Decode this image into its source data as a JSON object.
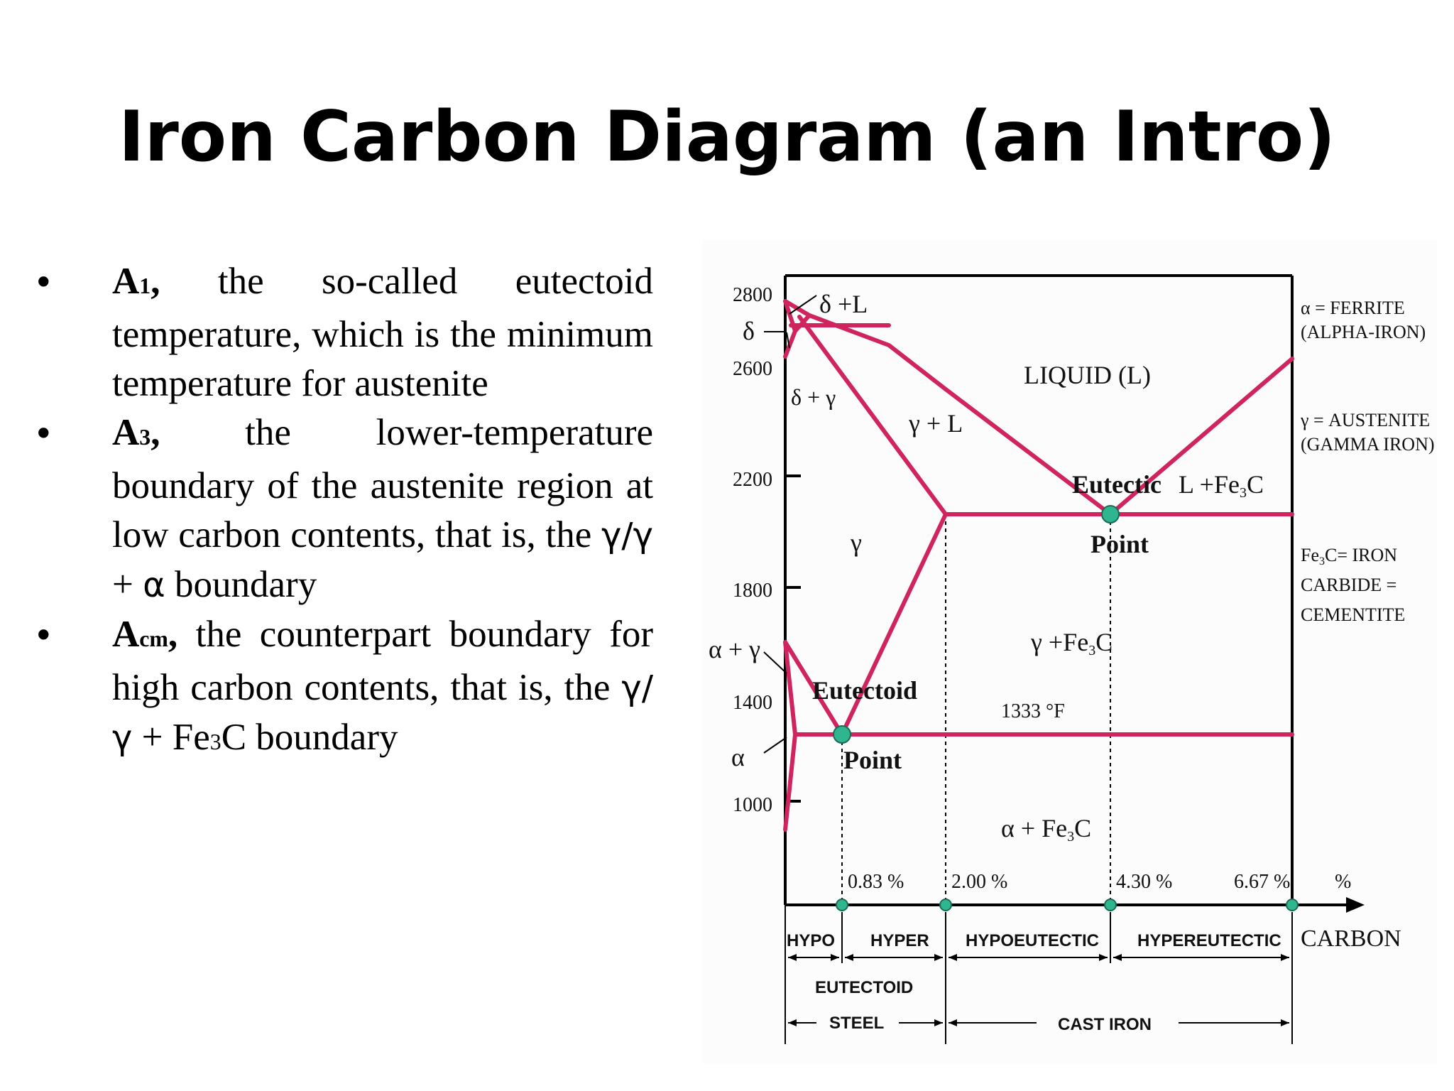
{
  "title": "Iron Carbon Diagram (an Intro)",
  "bullets": [
    {
      "head": "A",
      "sub": "1",
      "comma": ",",
      "text": " the so-called eutectoid temperature, which is the minimum temperature for austenite"
    },
    {
      "head": "A",
      "sub": "3",
      "comma": ",",
      "text": " the lower-temperature boundary of the austenite region at low carbon contents, that is, the ",
      "sym1": "γ/γ",
      "mid": " + ",
      "sym2": "α",
      "tail": " boundary"
    },
    {
      "head": "A",
      "sub": "cm",
      "comma": ",",
      "text": " the counterpart boundary for high carbon contents, that is, the ",
      "sym1": "γ/γ",
      "mid": " + Fe",
      "sub2": "3",
      "tail": "C boundary"
    }
  ],
  "diagram": {
    "y_ticks": [
      "2800",
      "2600",
      "2200",
      "1800",
      "1400",
      "1000"
    ],
    "left_labels": {
      "delta": "δ",
      "alpha_gamma": "α + γ",
      "alpha": "α"
    },
    "regions": {
      "delta_l": "δ  +L",
      "delta_gamma": "δ + γ",
      "liquid": "LIQUID (L)",
      "gamma_l": "γ + L",
      "gamma": "γ",
      "eutectic": "Eutectic",
      "eutectic_point": "Point",
      "l_fe3c": "L  +Fe",
      "l_fe3c_sub": "3",
      "l_fe3c_c": "C",
      "gamma_fe3c": "γ  +Fe",
      "gamma_fe3c_sub": "3",
      "gamma_fe3c_c": "C",
      "eutectoid": "Eutectoid",
      "eutectoid_point": "Point",
      "temp_1333": "1333 °F",
      "alpha_fe3c": "α + Fe",
      "alpha_fe3c_sub": "3",
      "alpha_fe3c_c": "C"
    },
    "carbon_marks": [
      "0.83 %",
      "2.00 %",
      "4.30 %",
      "6.67 %",
      "%"
    ],
    "axis_label": "CARBON",
    "legend": {
      "ferrite_1": "α = FERRITE",
      "ferrite_2": "(ALPHA-IRON)",
      "austenite_1": "γ = AUSTENITE",
      "austenite_2": "(GAMMA IRON)",
      "cementite_1a": "Fe",
      "cementite_1sub": "3",
      "cementite_1b": "C= IRON",
      "cementite_2": "CARBIDE =",
      "cementite_3": "CEMENTITE"
    },
    "categories": {
      "hypo": "HYPO",
      "hyper": "HYPER",
      "hypoeutectic": "HYPOEUTECTIC",
      "hypereutectic": "HYPEREUTECTIC",
      "eutectoid": "EUTECTOID",
      "steel": "STEEL",
      "cast_iron": "CAST IRON"
    },
    "colors": {
      "phase_line": "#d0245e",
      "point": "#2fb58f",
      "frame": "#000000"
    }
  }
}
